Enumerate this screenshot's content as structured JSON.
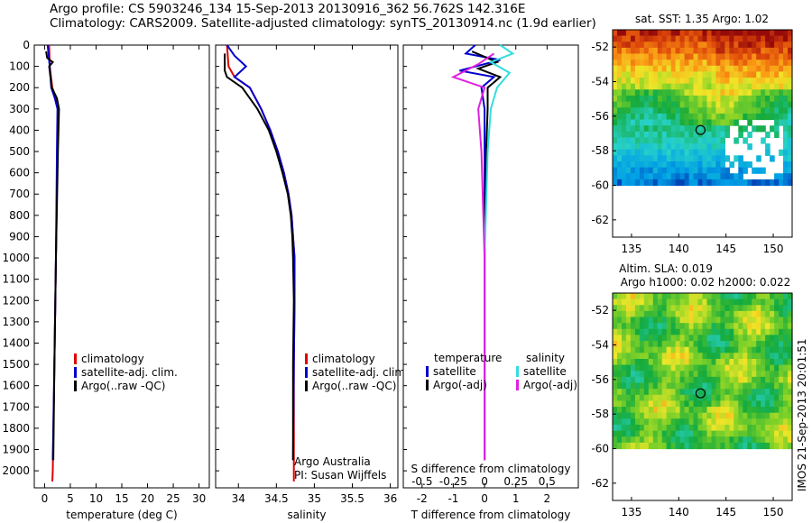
{
  "header": {
    "line1": "Argo profile: CS 5903246_134 15-Sep-2013 20130916_362 56.762S 142.316E",
    "line2": "Climatology: CARS2009. Satellite-adjusted climatology: synTS_20130914.nc (1.9d earlier)"
  },
  "credit": {
    "line1": "Argo Australia",
    "line2": "PI: Susan Wijffels"
  },
  "footer_stamp": "IMOS 21-Sep-2013 20:01:51",
  "colors": {
    "climatology": "#e00000",
    "satellite": "#0000cc",
    "argo": "#000000",
    "sat_salinity": "#33dddd",
    "argo_salinity": "#e020e0"
  },
  "chart_data": [
    {
      "type": "line",
      "id": "temperature",
      "xlabel": "temperature (deg C)",
      "ylabel": "",
      "xlim": [
        -2,
        32
      ],
      "ylim": [
        2080,
        0
      ],
      "x_ticks": [
        0,
        5,
        10,
        15,
        20,
        25,
        30
      ],
      "y_ticks": [
        0,
        100,
        200,
        300,
        400,
        500,
        600,
        700,
        800,
        900,
        1000,
        1100,
        1200,
        1300,
        1400,
        1500,
        1600,
        1700,
        1800,
        1900,
        2000
      ],
      "legend": [
        "climatology",
        "satellite-adj. clim.",
        "Argo(..raw -QC)"
      ],
      "series": [
        {
          "name": "climatology",
          "color": "#e00000",
          "points": [
            [
              0.9,
              0
            ],
            [
              1.0,
              100
            ],
            [
              1.5,
              200
            ],
            [
              2.2,
              250
            ],
            [
              2.6,
              300
            ],
            [
              2.5,
              500
            ],
            [
              2.2,
              1000
            ],
            [
              1.9,
              1500
            ],
            [
              1.6,
              2000
            ],
            [
              1.5,
              2050
            ]
          ]
        },
        {
          "name": "satellite-adj. clim.",
          "color": "#0000cc",
          "points": [
            [
              0.6,
              0
            ],
            [
              0.8,
              50
            ],
            [
              1.0,
              100
            ],
            [
              1.3,
              200
            ],
            [
              2.0,
              250
            ],
            [
              2.5,
              300
            ],
            [
              2.4,
              500
            ],
            [
              2.2,
              1000
            ],
            [
              1.9,
              1500
            ],
            [
              1.6,
              1950
            ]
          ]
        },
        {
          "name": "Argo(..raw -QC)",
          "color": "#000000",
          "points": [
            [
              0.3,
              30
            ],
            [
              0.5,
              60
            ],
            [
              1.6,
              80
            ],
            [
              0.9,
              100
            ],
            [
              1.4,
              200
            ],
            [
              2.4,
              250
            ],
            [
              2.8,
              300
            ],
            [
              2.6,
              500
            ],
            [
              2.2,
              1000
            ],
            [
              1.9,
              1500
            ],
            [
              1.7,
              1950
            ]
          ]
        }
      ]
    },
    {
      "type": "line",
      "id": "salinity",
      "xlabel": "salinity",
      "xlim": [
        33.7,
        36.1
      ],
      "ylim": [
        2080,
        0
      ],
      "x_ticks": [
        34,
        34.5,
        35,
        35.5,
        36
      ],
      "legend": [
        "climatology",
        "satellite-adj. clim.",
        "Argo(..raw -QC)"
      ],
      "series": [
        {
          "name": "climatology",
          "color": "#e00000",
          "points": [
            [
              33.85,
              0
            ],
            [
              33.87,
              100
            ],
            [
              33.95,
              150
            ],
            [
              34.15,
              200
            ],
            [
              34.3,
              300
            ],
            [
              34.42,
              400
            ],
            [
              34.52,
              500
            ],
            [
              34.6,
              600
            ],
            [
              34.66,
              700
            ],
            [
              34.7,
              800
            ],
            [
              34.72,
              900
            ],
            [
              34.74,
              1000
            ],
            [
              34.74,
              1200
            ],
            [
              34.73,
              1500
            ],
            [
              34.73,
              2050
            ]
          ]
        },
        {
          "name": "satellite-adj. clim.",
          "color": "#0000cc",
          "points": [
            [
              33.85,
              0
            ],
            [
              33.95,
              50
            ],
            [
              34.1,
              100
            ],
            [
              33.95,
              150
            ],
            [
              34.15,
              200
            ],
            [
              34.3,
              300
            ],
            [
              34.42,
              400
            ],
            [
              34.52,
              500
            ],
            [
              34.6,
              600
            ],
            [
              34.66,
              700
            ],
            [
              34.7,
              800
            ],
            [
              34.72,
              900
            ],
            [
              34.74,
              1000
            ],
            [
              34.74,
              1200
            ],
            [
              34.73,
              1500
            ],
            [
              34.72,
              1950
            ]
          ]
        },
        {
          "name": "Argo(..raw -QC)",
          "color": "#000000",
          "points": [
            [
              33.82,
              40
            ],
            [
              33.82,
              120
            ],
            [
              33.85,
              150
            ],
            [
              34.05,
              200
            ],
            [
              34.25,
              300
            ],
            [
              34.4,
              400
            ],
            [
              34.5,
              500
            ],
            [
              34.58,
              600
            ],
            [
              34.65,
              700
            ],
            [
              34.69,
              800
            ],
            [
              34.71,
              900
            ],
            [
              34.72,
              1000
            ],
            [
              34.73,
              1200
            ],
            [
              34.72,
              1500
            ],
            [
              34.72,
              1950
            ]
          ]
        }
      ]
    },
    {
      "type": "line",
      "id": "difference",
      "xlabel": "T difference from climatology",
      "xlabel_top": "S difference from climatology",
      "xlim": [
        -2.6,
        3
      ],
      "ylim": [
        2080,
        0
      ],
      "x_ticks": [
        -2,
        -1,
        0,
        1,
        2
      ],
      "x_ticks_top": [
        "-0.5",
        "-0.25",
        "0",
        "0.25",
        "0.5"
      ],
      "legend_left_title": "temperature",
      "legend_right_title": "salinity",
      "legend": [
        "satellite",
        "Argo(-adj)",
        "satellite",
        "Argo(-adj)"
      ],
      "series": [
        {
          "name": "satellite",
          "color": "#0000cc",
          "points": [
            [
              -0.3,
              0
            ],
            [
              -0.6,
              40
            ],
            [
              0.5,
              70
            ],
            [
              -0.8,
              120
            ],
            [
              0.3,
              150
            ],
            [
              -0.1,
              200
            ],
            [
              0,
              300
            ],
            [
              0,
              500
            ],
            [
              0,
              1000
            ],
            [
              0,
              1500
            ],
            [
              0,
              1950
            ]
          ]
        },
        {
          "name": "Argo(-adj)",
          "color": "#000000",
          "points": [
            [
              -0.4,
              30
            ],
            [
              0.4,
              80
            ],
            [
              -0.2,
              110
            ],
            [
              0.5,
              150
            ],
            [
              0.1,
              200
            ],
            [
              0.1,
              300
            ],
            [
              0.05,
              500
            ],
            [
              0,
              1000
            ],
            [
              0,
              1500
            ],
            [
              0,
              1950
            ]
          ]
        },
        {
          "name": "satellite",
          "color": "#33dddd",
          "points": [
            [
              0.5,
              0
            ],
            [
              0.9,
              40
            ],
            [
              0.2,
              80
            ],
            [
              0.8,
              130
            ],
            [
              0.4,
              200
            ],
            [
              0.2,
              300
            ],
            [
              0.1,
              500
            ],
            [
              0,
              1000
            ],
            [
              0,
              1500
            ],
            [
              0,
              1950
            ]
          ]
        },
        {
          "name": "Argo(-adj)",
          "color": "#e020e0",
          "points": [
            [
              0.3,
              40
            ],
            [
              -0.2,
              90
            ],
            [
              -1.0,
              150
            ],
            [
              0,
              200
            ],
            [
              -0.2,
              300
            ],
            [
              -0.1,
              500
            ],
            [
              0,
              1000
            ],
            [
              0,
              1500
            ],
            [
              0,
              1950
            ]
          ]
        }
      ]
    },
    {
      "type": "heatmap",
      "id": "sst_map",
      "title": "sat. SST: 1.35 Argo: 1.02",
      "xlim": [
        133,
        152
      ],
      "ylim": [
        -63,
        -51
      ],
      "x_ticks": [
        135,
        140,
        145,
        150
      ],
      "y_ticks": [
        -52,
        -54,
        -56,
        -58,
        -60,
        -62
      ],
      "marker": {
        "lon": 142.3,
        "lat": -56.8
      }
    },
    {
      "type": "heatmap",
      "id": "sla_map",
      "title": "Altim. SLA: 0.019",
      "subtitle": "Argo h1000: 0.02 h2000: 0.022",
      "xlim": [
        133,
        152
      ],
      "ylim": [
        -63,
        -51
      ],
      "x_ticks": [
        135,
        140,
        145,
        150
      ],
      "y_ticks": [
        -52,
        -54,
        -56,
        -58,
        -60,
        -62
      ],
      "marker": {
        "lon": 142.3,
        "lat": -56.8
      }
    }
  ]
}
